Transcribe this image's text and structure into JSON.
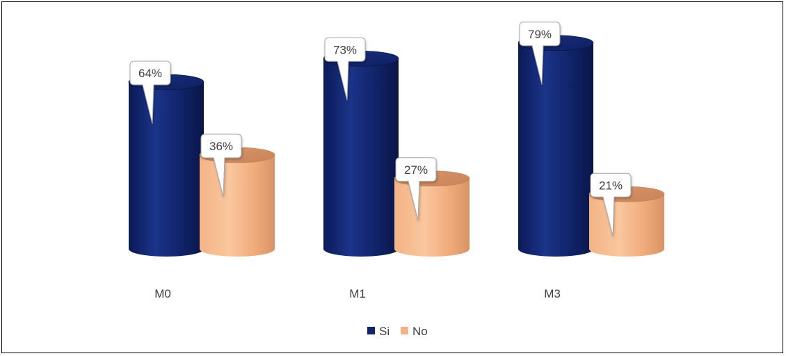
{
  "chart_data": {
    "type": "bar",
    "style": "3d-cylinder",
    "categories": [
      "M0",
      "M1",
      "M3"
    ],
    "series": [
      {
        "name": "Si",
        "values": [
          64,
          73,
          79
        ],
        "labels": [
          "64%",
          "73%",
          "79%"
        ],
        "color": "#10236b"
      },
      {
        "name": "No",
        "values": [
          36,
          27,
          21
        ],
        "labels": [
          "36%",
          "27%",
          "21%"
        ],
        "color": "#f4b183"
      }
    ],
    "unit": "%",
    "grid": false,
    "axis_lines": false,
    "legend_position": "bottom",
    "data_labels": "callout"
  }
}
